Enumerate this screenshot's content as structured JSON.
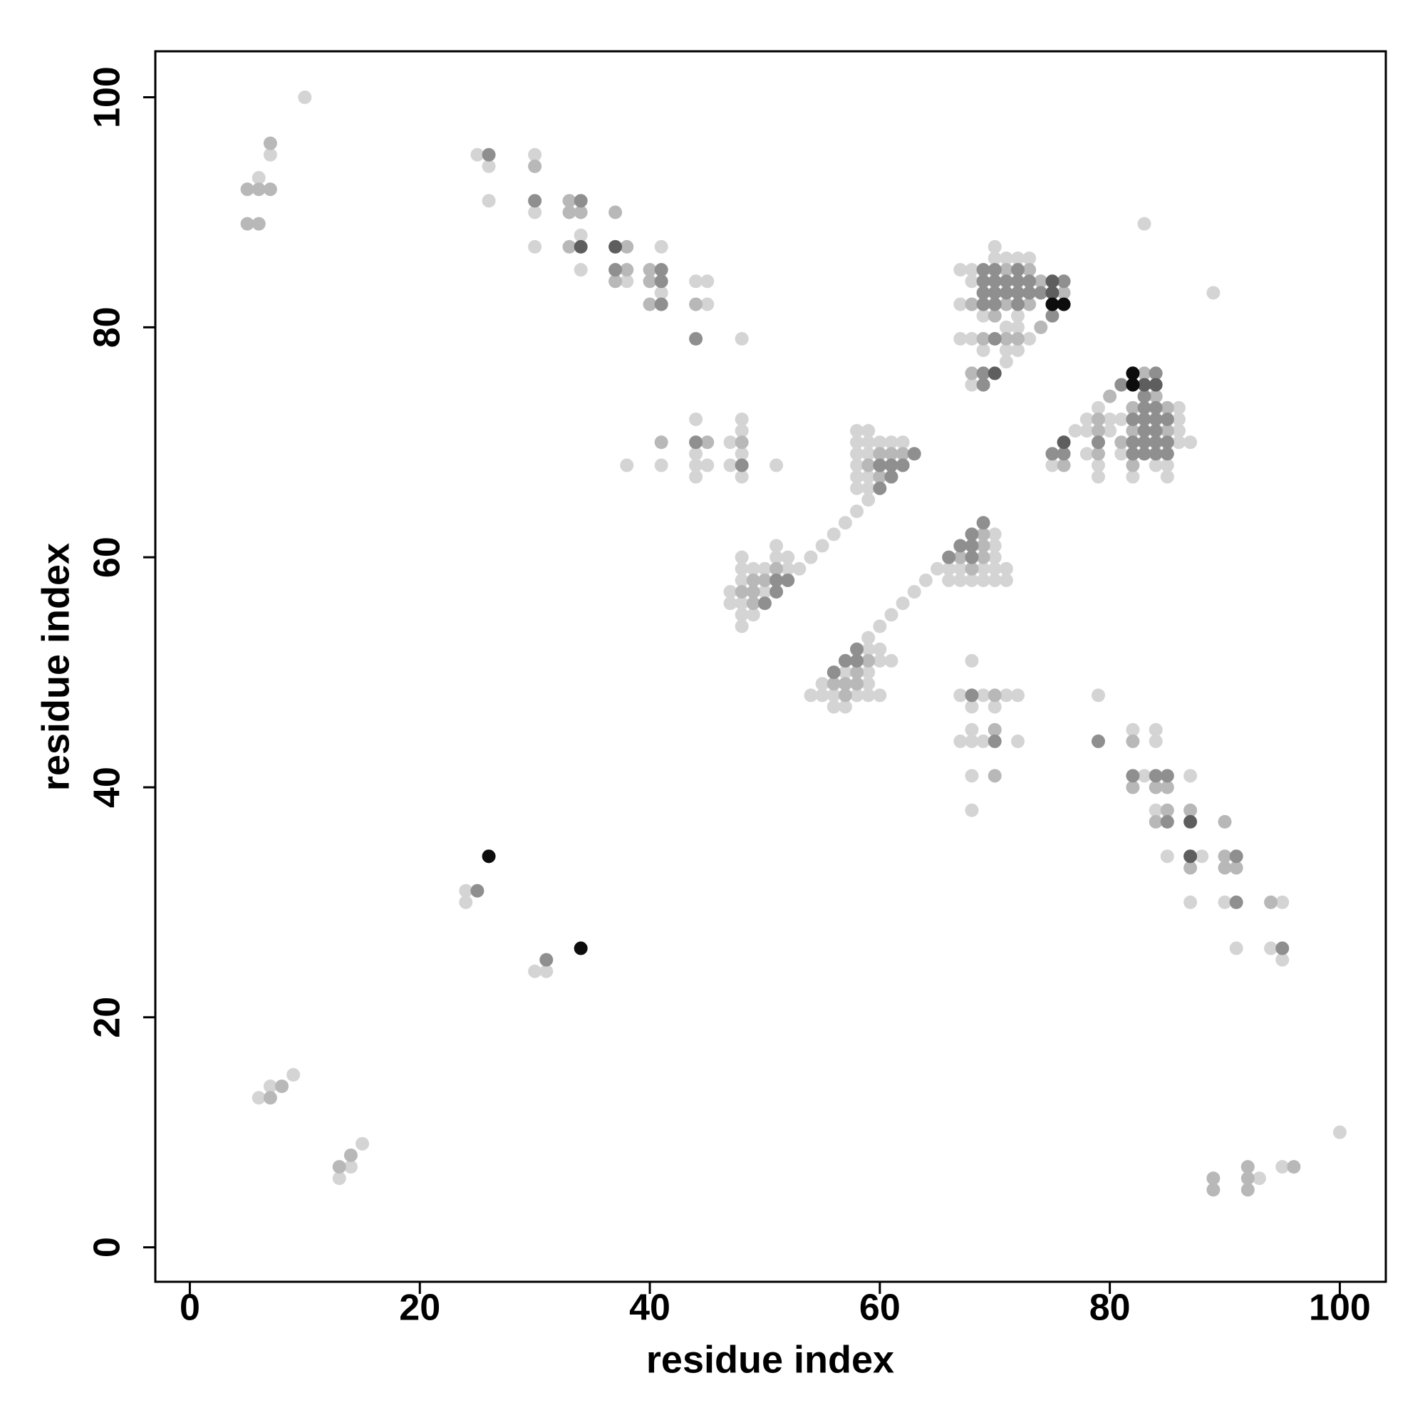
{
  "chart_data": {
    "type": "scatter",
    "x_label": "residue index",
    "y_label": "residue index",
    "xlim": [
      -3,
      104
    ],
    "ylim": [
      -3,
      104
    ],
    "xticks": [
      0,
      20,
      40,
      60,
      80,
      100
    ],
    "yticks": [
      0,
      20,
      40,
      60,
      80,
      100
    ],
    "series": [
      {
        "color": "#d4d4d4",
        "x": [
          10,
          7,
          6,
          6,
          7,
          9,
          25,
          26,
          26,
          30,
          30,
          30,
          34,
          34,
          38,
          41,
          41,
          44,
          45,
          45,
          48,
          24,
          24,
          44,
          44,
          44,
          44,
          45,
          41,
          38,
          47,
          48,
          48,
          48,
          47,
          48,
          51,
          47,
          48,
          48,
          48,
          48,
          48,
          49,
          49,
          48,
          50,
          50,
          51,
          51,
          52,
          52,
          53,
          47,
          58,
          59,
          58,
          59,
          60,
          61,
          62,
          58,
          59,
          58,
          58,
          59,
          58,
          59,
          59,
          58,
          57,
          56,
          55,
          54,
          70,
          70,
          71,
          72,
          73,
          67,
          68,
          68,
          67,
          69,
          72,
          71,
          72,
          67,
          68,
          73,
          69,
          71,
          72,
          71,
          68,
          83,
          100,
          95,
          93,
          13,
          14,
          15,
          95,
          94,
          91,
          95,
          90,
          87,
          88,
          85,
          84,
          87,
          83,
          84,
          84,
          82,
          79,
          31,
          30,
          72,
          69,
          68,
          67,
          68,
          68,
          68,
          70,
          72,
          71,
          69,
          68,
          67,
          68,
          57,
          58,
          56,
          55,
          60,
          59,
          59,
          55,
          54,
          59,
          57,
          61,
          60,
          60,
          59,
          59,
          56,
          71,
          71,
          70,
          70,
          70,
          70,
          70,
          69,
          69,
          68,
          67,
          67,
          66,
          66,
          65,
          64,
          63,
          62,
          61,
          60,
          87,
          86,
          86,
          86,
          86,
          85,
          85,
          84,
          82,
          81,
          81,
          80,
          80,
          79,
          79,
          79,
          78,
          78,
          78,
          77,
          75,
          89
        ],
        "y": [
          100,
          95,
          93,
          13,
          14,
          15,
          95,
          94,
          91,
          95,
          90,
          87,
          88,
          85,
          84,
          87,
          83,
          84,
          84,
          82,
          79,
          31,
          30,
          72,
          69,
          68,
          67,
          68,
          68,
          68,
          70,
          72,
          71,
          69,
          68,
          67,
          68,
          57,
          58,
          56,
          55,
          60,
          59,
          59,
          55,
          54,
          59,
          57,
          61,
          60,
          60,
          59,
          59,
          56,
          71,
          71,
          70,
          70,
          70,
          70,
          70,
          69,
          69,
          68,
          67,
          67,
          66,
          66,
          65,
          64,
          63,
          62,
          61,
          60,
          87,
          86,
          86,
          86,
          86,
          85,
          85,
          84,
          82,
          81,
          81,
          80,
          80,
          79,
          79,
          79,
          78,
          78,
          78,
          77,
          75,
          89,
          10,
          7,
          6,
          6,
          7,
          9,
          25,
          26,
          26,
          30,
          30,
          30,
          34,
          34,
          38,
          41,
          41,
          44,
          45,
          45,
          48,
          24,
          24,
          44,
          44,
          44,
          44,
          45,
          41,
          38,
          47,
          48,
          48,
          48,
          47,
          48,
          51,
          47,
          48,
          48,
          48,
          48,
          48,
          49,
          49,
          48,
          50,
          50,
          51,
          51,
          52,
          52,
          53,
          47,
          58,
          59,
          58,
          59,
          60,
          61,
          62,
          58,
          59,
          58,
          58,
          59,
          58,
          59,
          59,
          58,
          57,
          56,
          55,
          54,
          70,
          70,
          71,
          72,
          73,
          67,
          68,
          68,
          67,
          69,
          72,
          71,
          72,
          67,
          68,
          73,
          69,
          71,
          72,
          71,
          68,
          83
        ]
      },
      {
        "color": "#b8b8b8",
        "x": [
          7,
          5,
          6,
          7,
          5,
          6,
          7,
          8,
          30,
          33,
          33,
          34,
          33,
          37,
          38,
          38,
          37,
          40,
          40,
          40,
          44,
          41,
          45,
          48,
          48,
          49,
          49,
          49,
          50,
          51,
          60,
          61,
          62,
          59,
          60,
          71,
          73,
          74,
          76,
          68,
          71,
          73,
          70,
          74,
          69,
          71,
          72,
          68,
          96,
          92,
          92,
          92,
          89,
          89,
          13,
          14,
          94,
          91,
          90,
          90,
          87,
          90,
          87,
          85,
          84,
          85,
          84,
          82,
          82,
          70,
          70,
          70,
          57,
          58,
          57,
          56,
          58,
          59,
          69,
          69,
          69,
          68,
          67,
          85,
          85,
          84,
          83,
          82,
          82,
          82,
          81,
          80,
          79,
          79,
          79,
          76
        ],
        "y": [
          96,
          92,
          92,
          92,
          89,
          89,
          13,
          14,
          94,
          91,
          90,
          90,
          87,
          90,
          87,
          85,
          84,
          85,
          84,
          82,
          82,
          70,
          70,
          70,
          57,
          58,
          57,
          56,
          58,
          59,
          69,
          69,
          69,
          68,
          67,
          85,
          85,
          84,
          83,
          82,
          82,
          82,
          81,
          80,
          79,
          79,
          79,
          76,
          7,
          5,
          6,
          7,
          5,
          6,
          7,
          8,
          30,
          33,
          33,
          34,
          33,
          37,
          38,
          38,
          37,
          40,
          40,
          40,
          44,
          41,
          45,
          48,
          48,
          49,
          49,
          49,
          50,
          51,
          60,
          61,
          62,
          59,
          60,
          71,
          73,
          74,
          76,
          68,
          71,
          73,
          70,
          74,
          69,
          71,
          72,
          68
        ]
      },
      {
        "color": "#8f8f8f",
        "x": [
          26,
          30,
          34,
          37,
          41,
          41,
          41,
          44,
          25,
          44,
          48,
          50,
          51,
          51,
          52,
          63,
          60,
          61,
          62,
          61,
          60,
          69,
          70,
          72,
          69,
          70,
          71,
          72,
          73,
          76,
          69,
          70,
          71,
          72,
          73,
          74,
          69,
          70,
          72,
          75,
          70,
          69,
          69,
          95,
          91,
          91,
          85,
          85,
          84,
          82,
          79,
          31,
          70,
          68,
          56,
          58,
          57,
          58,
          69,
          68,
          68,
          68,
          67,
          66,
          85,
          85,
          85,
          84,
          84,
          84,
          84,
          84,
          84,
          83,
          83,
          83,
          83,
          83,
          83,
          82,
          82,
          82,
          81,
          79,
          76,
          75
        ],
        "y": [
          95,
          91,
          91,
          85,
          85,
          84,
          82,
          79,
          31,
          70,
          68,
          56,
          58,
          57,
          58,
          69,
          68,
          68,
          68,
          67,
          66,
          85,
          85,
          85,
          84,
          84,
          84,
          84,
          84,
          84,
          83,
          83,
          83,
          83,
          83,
          83,
          82,
          82,
          82,
          81,
          79,
          76,
          75,
          26,
          30,
          34,
          37,
          41,
          41,
          41,
          44,
          25,
          44,
          48,
          50,
          51,
          51,
          52,
          63,
          60,
          61,
          62,
          61,
          60,
          69,
          70,
          72,
          69,
          70,
          71,
          72,
          73,
          76,
          69,
          70,
          71,
          72,
          73,
          74,
          69,
          70,
          72,
          75,
          70,
          69,
          69
        ]
      },
      {
        "color": "#5e5e5e",
        "x": [
          34,
          37,
          75,
          75,
          70,
          87,
          87,
          84,
          83,
          76
        ],
        "y": [
          87,
          87,
          84,
          83,
          76,
          34,
          37,
          75,
          75,
          70
        ]
      },
      {
        "color": "#0d0d0d",
        "x": [
          26,
          75,
          76,
          34,
          82,
          82
        ],
        "y": [
          34,
          82,
          82,
          26,
          75,
          76
        ]
      }
    ]
  }
}
